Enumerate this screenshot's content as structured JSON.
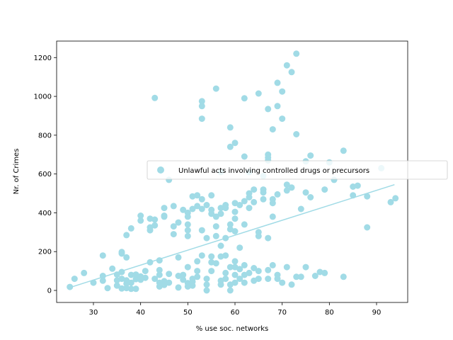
{
  "chart_data": {
    "type": "scatter",
    "title": "",
    "xlabel": "% use soc. networks",
    "ylabel": "Nr. of Crimes",
    "xlim": [
      22.2,
      96.6
    ],
    "ylim": [
      -62,
      1285
    ],
    "x_ticks": [
      30,
      40,
      50,
      60,
      70,
      80,
      90
    ],
    "y_ticks": [
      0,
      200,
      400,
      600,
      800,
      1000,
      1200
    ],
    "grid": false,
    "legend_placement": "center-right",
    "colors": {
      "series": "#a1dbe6",
      "trend": "#a1dbe6",
      "axes": "#000000"
    },
    "series": [
      {
        "name": "Unlawful acts involving controlled drugs or precursors",
        "points": [
          [
            25,
            18
          ],
          [
            26,
            60
          ],
          [
            28,
            90
          ],
          [
            30,
            40
          ],
          [
            32,
            50
          ],
          [
            32,
            75
          ],
          [
            32,
            180
          ],
          [
            33,
            12
          ],
          [
            34,
            112
          ],
          [
            35,
            25
          ],
          [
            35,
            52
          ],
          [
            35,
            82
          ],
          [
            36,
            190
          ],
          [
            36,
            198
          ],
          [
            36,
            95
          ],
          [
            36,
            60
          ],
          [
            36,
            10
          ],
          [
            37,
            12
          ],
          [
            37,
            35
          ],
          [
            37,
            52
          ],
          [
            37,
            285
          ],
          [
            37,
            170
          ],
          [
            38,
            320
          ],
          [
            38,
            80
          ],
          [
            38,
            40
          ],
          [
            38,
            8
          ],
          [
            39,
            82
          ],
          [
            39,
            58
          ],
          [
            39,
            8
          ],
          [
            40,
            55
          ],
          [
            40,
            72
          ],
          [
            40,
            360
          ],
          [
            40,
            385
          ],
          [
            41,
            65
          ],
          [
            41,
            100
          ],
          [
            42,
            145
          ],
          [
            42,
            310
          ],
          [
            42,
            325
          ],
          [
            42,
            370
          ],
          [
            43,
            365
          ],
          [
            43,
            335
          ],
          [
            43,
            992
          ],
          [
            43,
            60
          ],
          [
            44,
            20
          ],
          [
            44,
            40
          ],
          [
            44,
            80
          ],
          [
            44,
            105
          ],
          [
            44,
            155
          ],
          [
            45,
            48
          ],
          [
            45,
            28
          ],
          [
            45,
            380
          ],
          [
            45,
            385
          ],
          [
            45,
            425
          ],
          [
            46,
            570
          ],
          [
            46,
            85
          ],
          [
            46,
            40
          ],
          [
            47,
            435
          ],
          [
            47,
            290
          ],
          [
            47,
            330
          ],
          [
            48,
            15
          ],
          [
            48,
            75
          ],
          [
            48,
            170
          ],
          [
            48,
            350
          ],
          [
            49,
            415
          ],
          [
            49,
            80
          ],
          [
            49,
            55
          ],
          [
            50,
            20
          ],
          [
            50,
            38
          ],
          [
            50,
            120
          ],
          [
            50,
            280
          ],
          [
            50,
            310
          ],
          [
            50,
            340
          ],
          [
            50,
            400
          ],
          [
            50,
            380
          ],
          [
            51,
            485
          ],
          [
            51,
            420
          ],
          [
            51,
            60
          ],
          [
            51,
            45
          ],
          [
            51,
            25
          ],
          [
            52,
            100
          ],
          [
            52,
            150
          ],
          [
            52,
            490
          ],
          [
            52,
            435
          ],
          [
            52,
            70
          ],
          [
            53,
            950
          ],
          [
            53,
            885
          ],
          [
            53,
            975
          ],
          [
            53,
            470
          ],
          [
            53,
            310
          ],
          [
            53,
            420
          ],
          [
            53,
            180
          ],
          [
            54,
            60
          ],
          [
            54,
            30
          ],
          [
            54,
            0
          ],
          [
            54,
            270
          ],
          [
            54,
            440
          ],
          [
            55,
            490
          ],
          [
            55,
            415
          ],
          [
            55,
            395
          ],
          [
            55,
            175
          ],
          [
            55,
            145
          ],
          [
            55,
            100
          ],
          [
            56,
            1040
          ],
          [
            56,
            380
          ],
          [
            56,
            330
          ],
          [
            56,
            280
          ],
          [
            56,
            140
          ],
          [
            57,
            175
          ],
          [
            57,
            230
          ],
          [
            57,
            395
          ],
          [
            57,
            425
          ],
          [
            57,
            610
          ],
          [
            57,
            50
          ],
          [
            57,
            30
          ],
          [
            58,
            440
          ],
          [
            58,
            425
          ],
          [
            58,
            270
          ],
          [
            58,
            180
          ],
          [
            58,
            90
          ],
          [
            58,
            60
          ],
          [
            59,
            840
          ],
          [
            59,
            740
          ],
          [
            59,
            340
          ],
          [
            59,
            315
          ],
          [
            59,
            120
          ],
          [
            59,
            30
          ],
          [
            59,
            0
          ],
          [
            60,
            760
          ],
          [
            60,
            450
          ],
          [
            60,
            405
          ],
          [
            60,
            370
          ],
          [
            60,
            305
          ],
          [
            60,
            150
          ],
          [
            60,
            120
          ],
          [
            60,
            80
          ],
          [
            60,
            40
          ],
          [
            61,
            440
          ],
          [
            61,
            220
          ],
          [
            61,
            110
          ],
          [
            61,
            60
          ],
          [
            62,
            990
          ],
          [
            62,
            690
          ],
          [
            62,
            460
          ],
          [
            62,
            340
          ],
          [
            62,
            130
          ],
          [
            62,
            80
          ],
          [
            62,
            40
          ],
          [
            63,
            480
          ],
          [
            63,
            425
          ],
          [
            63,
            500
          ],
          [
            63,
            610
          ],
          [
            63,
            90
          ],
          [
            64,
            520
          ],
          [
            64,
            455
          ],
          [
            64,
            50
          ],
          [
            64,
            115
          ],
          [
            65,
            300
          ],
          [
            65,
            280
          ],
          [
            65,
            1015
          ],
          [
            65,
            100
          ],
          [
            65,
            60
          ],
          [
            66,
            505
          ],
          [
            66,
            520
          ],
          [
            66,
            590
          ],
          [
            66,
            470
          ],
          [
            67,
            700
          ],
          [
            67,
            685
          ],
          [
            67,
            670
          ],
          [
            67,
            935
          ],
          [
            67,
            270
          ],
          [
            67,
            105
          ],
          [
            67,
            60
          ],
          [
            68,
            830
          ],
          [
            68,
            470
          ],
          [
            68,
            450
          ],
          [
            68,
            380
          ],
          [
            68,
            130
          ],
          [
            69,
            1070
          ],
          [
            69,
            950
          ],
          [
            69,
            495
          ],
          [
            69,
            80
          ],
          [
            69,
            60
          ],
          [
            70,
            1025
          ],
          [
            70,
            885
          ],
          [
            70,
            40
          ],
          [
            71,
            1160
          ],
          [
            71,
            545
          ],
          [
            71,
            515
          ],
          [
            71,
            120
          ],
          [
            72,
            1125
          ],
          [
            72,
            530
          ],
          [
            72,
            30
          ],
          [
            73,
            1220
          ],
          [
            73,
            805
          ],
          [
            73,
            70
          ],
          [
            74,
            420
          ],
          [
            74,
            70
          ],
          [
            75,
            665
          ],
          [
            75,
            505
          ],
          [
            75,
            120
          ],
          [
            76,
            695
          ],
          [
            76,
            480
          ],
          [
            77,
            75
          ],
          [
            78,
            95
          ],
          [
            79,
            520
          ],
          [
            79,
            90
          ],
          [
            80,
            660
          ],
          [
            81,
            570
          ],
          [
            83,
            720
          ],
          [
            83,
            70
          ],
          [
            85,
            535
          ],
          [
            85,
            490
          ],
          [
            86,
            540
          ],
          [
            88,
            485
          ],
          [
            88,
            325
          ],
          [
            91,
            630
          ],
          [
            93,
            455
          ],
          [
            94,
            475
          ]
        ]
      }
    ],
    "trendline": {
      "from": [
        25,
        15
      ],
      "to": [
        93.8,
        545
      ]
    }
  }
}
